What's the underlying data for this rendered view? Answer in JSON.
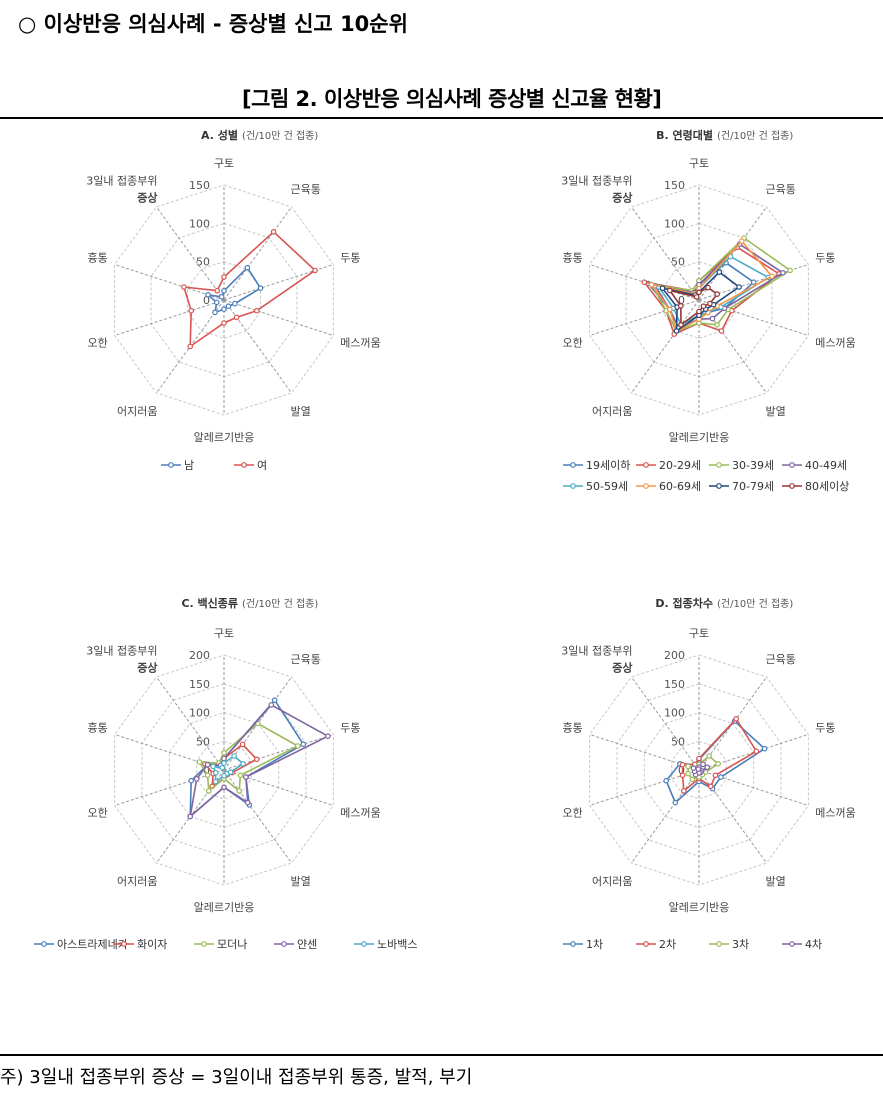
{
  "heading": "○ 이상반응 의심사례 - 증상별 신고 10순위",
  "figure_title": "[그림 2. 이상반응 의심사례 증상별 신고율 현황]",
  "footnote": "주) 3일내 접종부위 증상 = 3일이내 접종부위 통증, 발적, 부기",
  "colors": {
    "grid": "#c8c8c8",
    "axis": "#9a9a9a",
    "label": "#444444"
  },
  "chart_data": [
    {
      "type": "radar",
      "title": "A. 성별",
      "unit": "(건/10만 건 접종)",
      "axes": [
        "구토",
        "근육통",
        "두통",
        "메스꺼움",
        "발열",
        "알레르기반응",
        "어지러움",
        "오한",
        "흉통",
        "3일내 접종부위 증상"
      ],
      "ticks": [
        0,
        50,
        100,
        150
      ],
      "rmax": 150,
      "legend_position": "bottom",
      "series": [
        {
          "name": "남",
          "color": "#4a7ebb",
          "values": [
            12,
            52,
            50,
            15,
            10,
            12,
            20,
            10,
            22,
            5
          ]
        },
        {
          "name": "여",
          "color": "#d9534f",
          "values": [
            30,
            110,
            125,
            45,
            28,
            30,
            75,
            45,
            55,
            15
          ]
        }
      ]
    },
    {
      "type": "radar",
      "title": "B. 연령대별",
      "unit": "(건/10만 건 접종)",
      "axes": [
        "구토",
        "근육통",
        "두통",
        "메스꺼움",
        "발열",
        "알레르기반응",
        "어지러움",
        "오한",
        "흉통",
        "3일내 접종부위 증상"
      ],
      "ticks": [
        0,
        50,
        100,
        150
      ],
      "rmax": 150,
      "legend_position": "bottom",
      "series": [
        {
          "name": "19세이하",
          "color": "#4a7ebb",
          "values": [
            20,
            60,
            75,
            35,
            20,
            25,
            45,
            40,
            70,
            10
          ]
        },
        {
          "name": "20-29세",
          "color": "#d9534f",
          "values": [
            25,
            85,
            110,
            45,
            50,
            30,
            55,
            45,
            75,
            15
          ]
        },
        {
          "name": "30-39세",
          "color": "#9bbb59",
          "values": [
            25,
            100,
            125,
            40,
            40,
            30,
            50,
            45,
            65,
            15
          ]
        },
        {
          "name": "40-49세",
          "color": "#8064a2",
          "values": [
            20,
            90,
            115,
            35,
            30,
            25,
            45,
            40,
            60,
            12
          ]
        },
        {
          "name": "50-59세",
          "color": "#4bacc6",
          "values": [
            15,
            70,
            95,
            30,
            20,
            20,
            40,
            35,
            55,
            10
          ]
        },
        {
          "name": "60-69세",
          "color": "#f79646",
          "values": [
            15,
            95,
            100,
            25,
            20,
            25,
            50,
            40,
            65,
            10
          ]
        },
        {
          "name": "70-79세",
          "color": "#1f497d",
          "values": [
            10,
            45,
            55,
            20,
            15,
            20,
            50,
            30,
            50,
            8
          ]
        },
        {
          "name": "80세이상",
          "color": "#943634",
          "values": [
            10,
            20,
            25,
            15,
            10,
            15,
            40,
            25,
            40,
            5
          ]
        }
      ]
    },
    {
      "type": "radar",
      "title": "C. 백신종류",
      "unit": "(건/10만 건 접종)",
      "axes": [
        "구토",
        "근육통",
        "두통",
        "메스꺼움",
        "발열",
        "알레르기반응",
        "어지러움",
        "오한",
        "흉통",
        "3일내 접종부위 증상"
      ],
      "ticks": [
        0,
        50,
        100,
        150,
        200
      ],
      "rmax": 200,
      "legend_position": "bottom",
      "series": [
        {
          "name": "아스트라제네카",
          "color": "#4a7ebb",
          "values": [
            20,
            150,
            145,
            40,
            75,
            30,
            100,
            60,
            30,
            12
          ]
        },
        {
          "name": "화이자",
          "color": "#d9534f",
          "values": [
            20,
            55,
            60,
            15,
            10,
            15,
            35,
            20,
            35,
            10
          ]
        },
        {
          "name": "모더나",
          "color": "#9bbb59",
          "values": [
            30,
            100,
            135,
            30,
            45,
            15,
            45,
            30,
            45,
            15
          ]
        },
        {
          "name": "얀센",
          "color": "#8064a2",
          "values": [
            20,
            140,
            190,
            40,
            70,
            30,
            100,
            50,
            30,
            10
          ]
        },
        {
          "name": "노바백스",
          "color": "#4bacc6",
          "values": [
            12,
            30,
            35,
            12,
            8,
            10,
            25,
            15,
            20,
            5
          ]
        }
      ]
    },
    {
      "type": "radar",
      "title": "D. 접종차수",
      "unit": "(건/10만 건 접종)",
      "axes": [
        "구토",
        "근육통",
        "두통",
        "메스꺼움",
        "발열",
        "알레르기반응",
        "어지러움",
        "오한",
        "흉통",
        "3일내 접종부위 증상"
      ],
      "ticks": [
        0,
        50,
        100,
        150,
        200
      ],
      "rmax": 200,
      "legend_position": "bottom",
      "series": [
        {
          "name": "1차",
          "color": "#4a7ebb",
          "values": [
            18,
            105,
            120,
            40,
            40,
            20,
            70,
            60,
            35,
            12
          ]
        },
        {
          "name": "2차",
          "color": "#d9534f",
          "values": [
            20,
            110,
            105,
            30,
            35,
            15,
            45,
            30,
            30,
            12
          ]
        },
        {
          "name": "3차",
          "color": "#9bbb59",
          "values": [
            10,
            30,
            35,
            12,
            10,
            12,
            20,
            20,
            20,
            5
          ]
        },
        {
          "name": "4차",
          "color": "#8064a2",
          "values": [
            5,
            12,
            15,
            5,
            5,
            5,
            10,
            8,
            10,
            2
          ]
        }
      ]
    }
  ]
}
